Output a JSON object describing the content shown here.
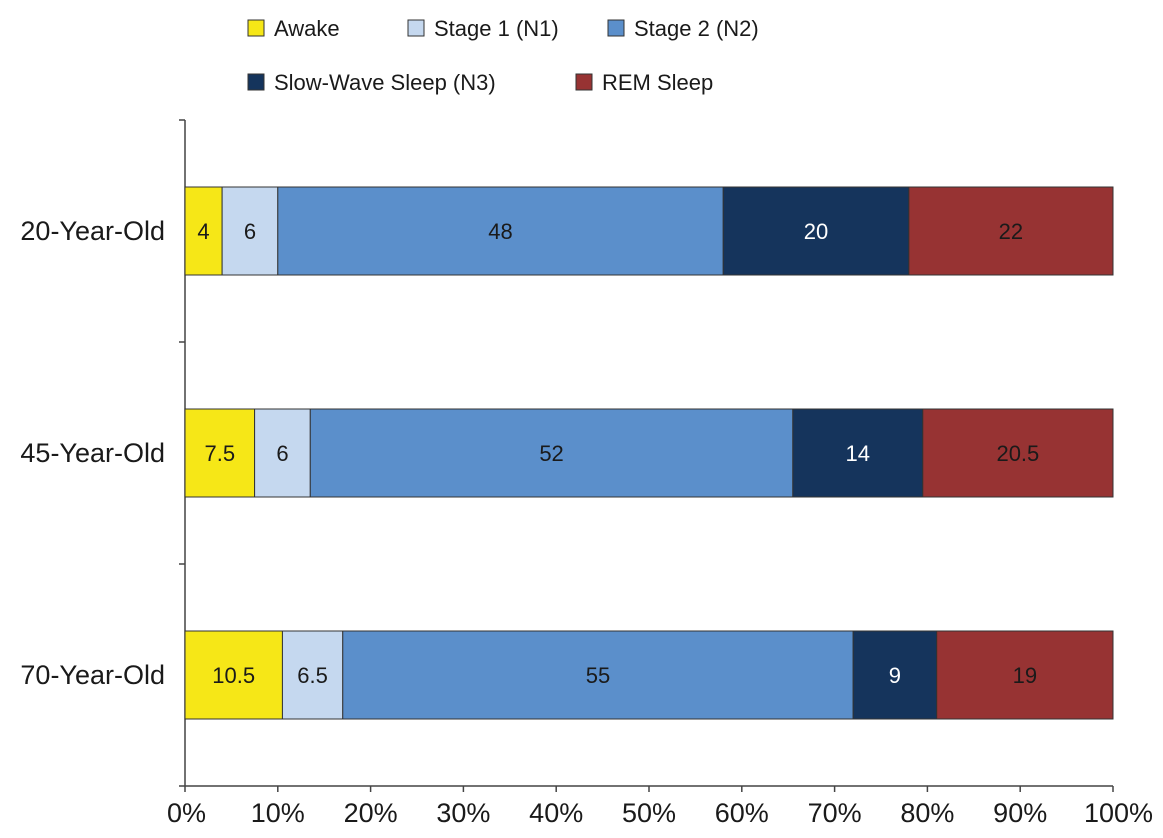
{
  "chart_data": {
    "type": "bar",
    "orientation": "horizontal",
    "stacked": true,
    "categories": [
      "20-Year-Old",
      "45-Year-Old",
      "70-Year-Old"
    ],
    "series": [
      {
        "name": "Awake",
        "values": [
          4,
          7.5,
          10.5
        ],
        "labels": [
          "4",
          "7.5",
          "10.5"
        ],
        "color": "#f6e717",
        "label_color": "#1a1a1a"
      },
      {
        "name": "Stage 1 (N1)",
        "values": [
          6,
          6,
          6.5
        ],
        "labels": [
          "6",
          "6",
          "6.5"
        ],
        "color": "#c5d8ef",
        "label_color": "#1a1a1a"
      },
      {
        "name": "Stage 2 (N2)",
        "values": [
          48,
          52,
          55
        ],
        "labels": [
          "48",
          "52",
          "55"
        ],
        "color": "#5b8fcb",
        "label_color": "#1a1a1a"
      },
      {
        "name": "Slow-Wave Sleep (N3)",
        "values": [
          20,
          14,
          9
        ],
        "labels": [
          "20",
          "14",
          "9"
        ],
        "color": "#15345c",
        "label_color": "#ffffff"
      },
      {
        "name": "REM Sleep",
        "values": [
          22,
          20.5,
          19
        ],
        "labels": [
          "22",
          "20.5",
          "19"
        ],
        "color": "#973333",
        "label_color": "#1a1a1a"
      }
    ],
    "xlim": [
      0,
      100
    ],
    "x_ticks": [
      "0%",
      "10%",
      "20%",
      "30%",
      "40%",
      "50%",
      "60%",
      "70%",
      "80%",
      "90%",
      "100%"
    ],
    "xlabel": "",
    "ylabel": "",
    "title": "",
    "grid": false,
    "legend_position": "top"
  }
}
